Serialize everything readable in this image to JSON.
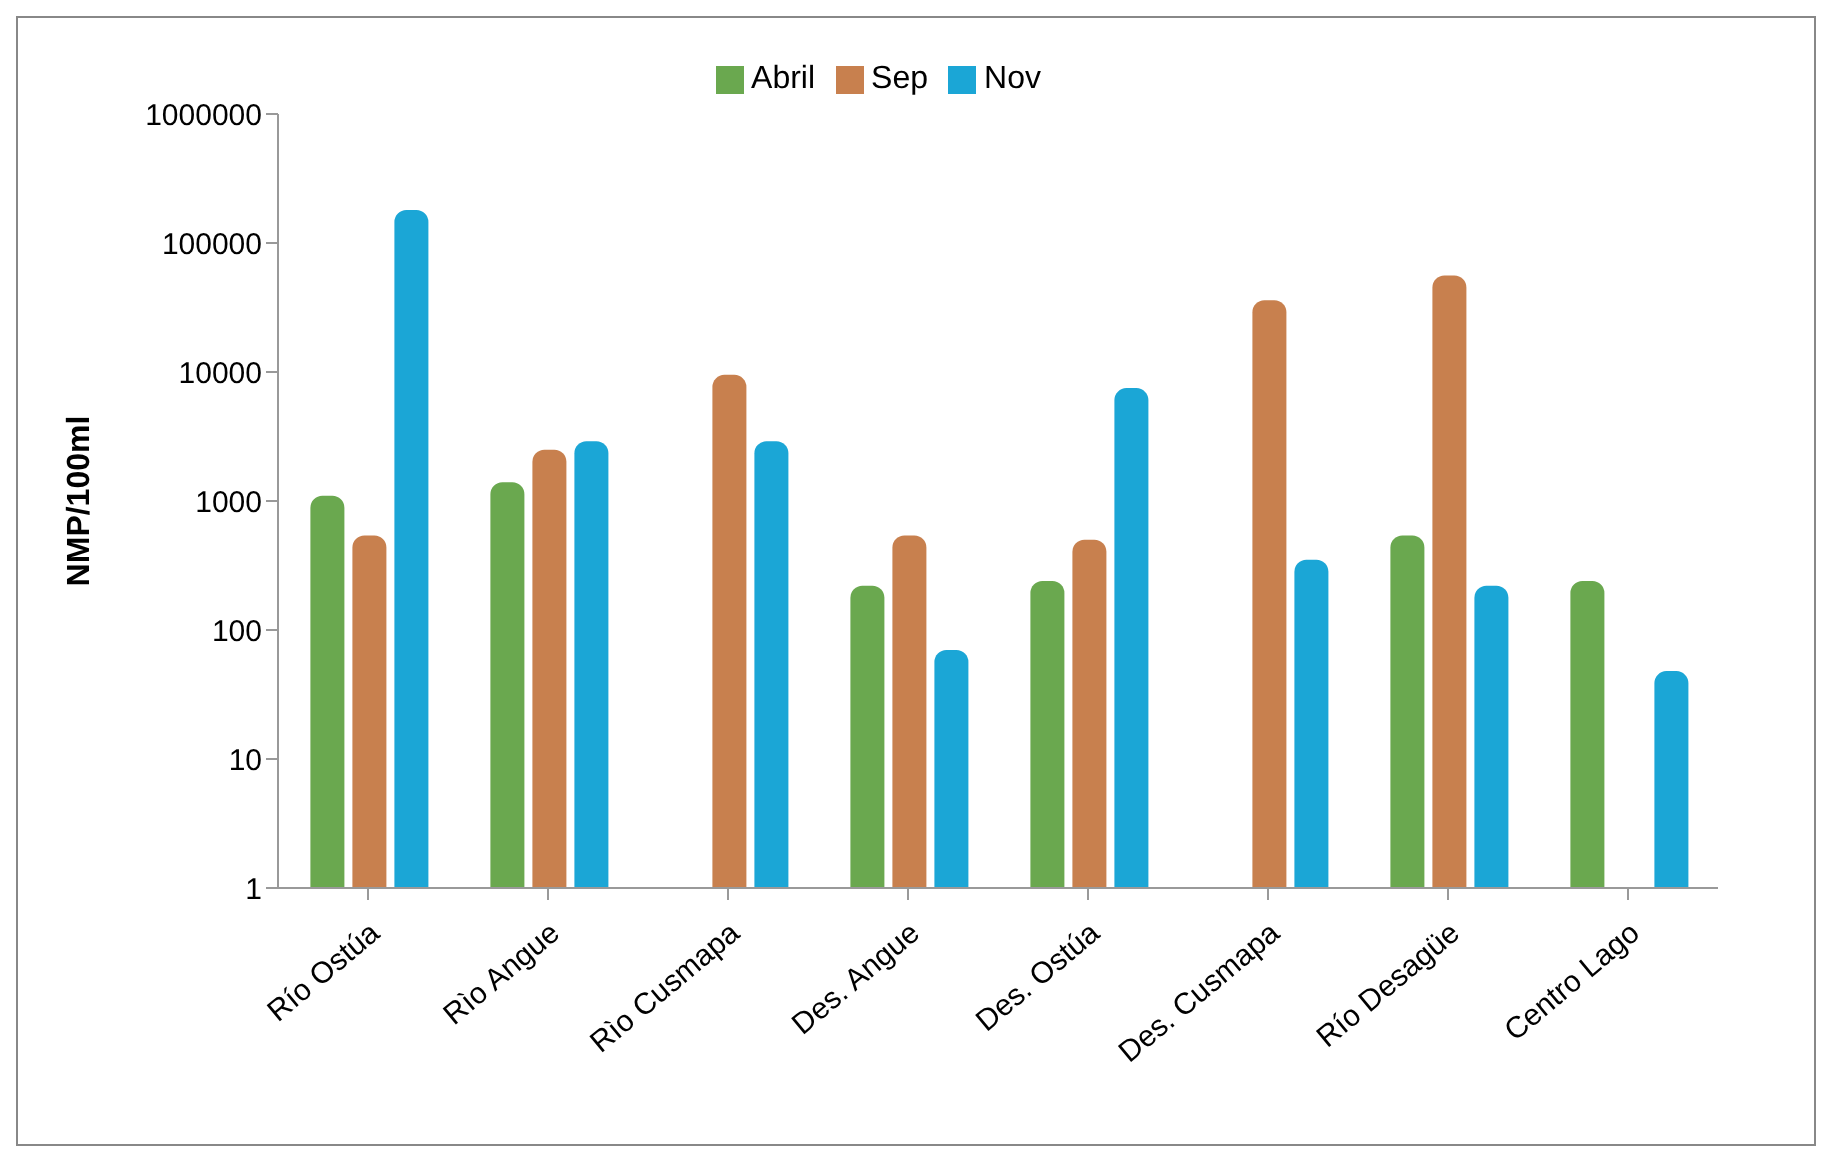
{
  "chart_data": {
    "type": "bar",
    "ylabel": "NMP/100ml",
    "categories": [
      "Río Ostúa",
      "Rìo Angue",
      "Rìo Cusmapa",
      "Des. Angue",
      "Des. Ostúa",
      "Des. Cusmapa",
      "Río Desagüe",
      "Centro Lago"
    ],
    "series": [
      {
        "name": "Abril",
        "color": "#6aa84f",
        "values": [
          1100,
          1400,
          null,
          220,
          240,
          1,
          540,
          240
        ]
      },
      {
        "name": "Sep",
        "color": "#c8804e",
        "values": [
          540,
          2500,
          9500,
          540,
          500,
          36000,
          56000,
          1
        ]
      },
      {
        "name": "Nov",
        "color": "#1ba6d6",
        "values": [
          180000,
          2900,
          2900,
          70,
          7500,
          350,
          220,
          48
        ]
      }
    ],
    "log": "y",
    "ylim": [
      1,
      1000000
    ],
    "yticks": [
      1,
      10,
      100,
      1000,
      10000,
      100000,
      1000000
    ],
    "legend": "top"
  }
}
